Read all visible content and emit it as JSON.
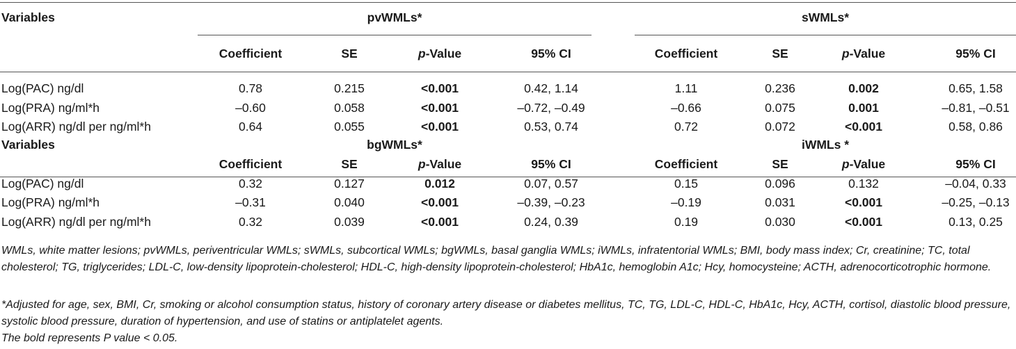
{
  "table": {
    "section1": {
      "variables_label": "Variables",
      "group_left": "pvWMLs*",
      "group_right": "sWMLs*",
      "columns": [
        "Coefficient",
        "SE",
        "-Value",
        "95% CI"
      ],
      "p_prefix": "p",
      "rows": [
        {
          "label": "Log(PAC) ng/dl",
          "left": [
            "0.78",
            "0.215",
            "<0.001",
            "0.42, 1.14"
          ],
          "right": [
            "1.11",
            "0.236",
            "0.002",
            "0.65, 1.58"
          ]
        },
        {
          "label": "Log(PRA) ng/ml*h",
          "left": [
            "–0.60",
            "0.058",
            "<0.001",
            "–0.72, –0.49"
          ],
          "right": [
            "–0.66",
            "0.075",
            "0.001",
            "–0.81, –0.51"
          ]
        },
        {
          "label": "Log(ARR) ng/dl per ng/ml*h",
          "left": [
            "0.64",
            "0.055",
            "<0.001",
            "0.53, 0.74"
          ],
          "right": [
            "0.72",
            "0.072",
            "<0.001",
            "0.58, 0.86"
          ]
        }
      ]
    },
    "section2": {
      "variables_label": "Variables",
      "group_left": "bgWMLs*",
      "group_right": "iWMLs *",
      "rows": [
        {
          "label": "Log(PAC) ng/dl",
          "left": [
            "0.32",
            "0.127",
            "0.012",
            "0.07, 0.57"
          ],
          "right": [
            "0.15",
            "0.096",
            "0.132",
            "–0.04, 0.33"
          ]
        },
        {
          "label": "Log(PRA) ng/ml*h",
          "left": [
            "–0.31",
            "0.040",
            "<0.001",
            "–0.39, –0.23"
          ],
          "right": [
            "–0.19",
            "0.031",
            "<0.001",
            "–0.25, –0.13"
          ]
        },
        {
          "label": "Log(ARR) ng/dl per ng/ml*h",
          "left": [
            "0.32",
            "0.039",
            "<0.001",
            "0.24, 0.39"
          ],
          "right": [
            "0.19",
            "0.030",
            "<0.001",
            "0.13, 0.25"
          ]
        }
      ]
    }
  },
  "footnotes": {
    "abbreviations": "WMLs, white matter lesions; pvWMLs, periventricular WMLs; sWMLs, subcortical WMLs; bgWMLs, basal ganglia WMLs; iWMLs, infratentorial WMLs; BMI, body mass index; Cr, creatinine; TC, total cholesterol; TG, triglycerides; LDL-C, low-density lipoprotein-cholesterol; HDL-C, high-density lipoprotein-cholesterol; HbA1c, hemoglobin A1c; Hcy, homocysteine; ACTH, adrenocorticotrophic hormone.",
    "adjusted": "*Adjusted for age, sex, BMI, Cr, smoking or alcohol consumption status, history of coronary artery disease or diabetes mellitus, TC, TG, LDL-C, HDL-C, HbA1c, Hcy, ACTH, cortisol, diastolic blood pressure, systolic blood pressure, duration of hypertension, and use of statins or antiplatelet agents.",
    "bold_note": "The bold represents P value < 0.05."
  }
}
